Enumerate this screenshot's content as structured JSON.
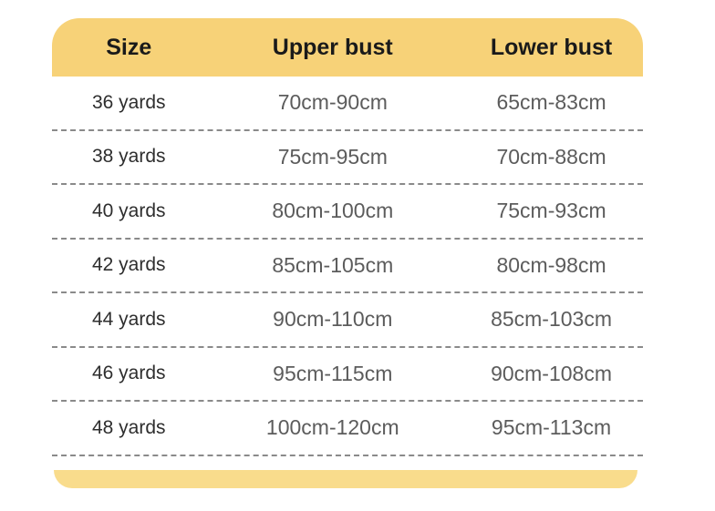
{
  "colors": {
    "header_bg": "#F7D278",
    "footer_bg": "#F9DC8C",
    "header_text": "#1A1A1A",
    "size_text": "#2E2E2E",
    "value_text": "#5C5C5C",
    "divider": "#8A8A8A"
  },
  "chart_data": {
    "type": "table",
    "title": "",
    "columns": [
      "Size",
      "Upper bust",
      "Lower bust"
    ],
    "rows": [
      [
        "36 yards",
        "70cm-90cm",
        "65cm-83cm"
      ],
      [
        "38 yards",
        "75cm-95cm",
        "70cm-88cm"
      ],
      [
        "40 yards",
        "80cm-100cm",
        "75cm-93cm"
      ],
      [
        "42 yards",
        "85cm-105cm",
        "80cm-98cm"
      ],
      [
        "44 yards",
        "90cm-110cm",
        "85cm-103cm"
      ],
      [
        "46 yards",
        "95cm-115cm",
        "90cm-108cm"
      ],
      [
        "48 yards",
        "100cm-120cm",
        "95cm-113cm"
      ]
    ],
    "layout": {
      "header_background": "#F7D278",
      "row_separator": "dashed",
      "grid": "horizontal-only"
    }
  }
}
